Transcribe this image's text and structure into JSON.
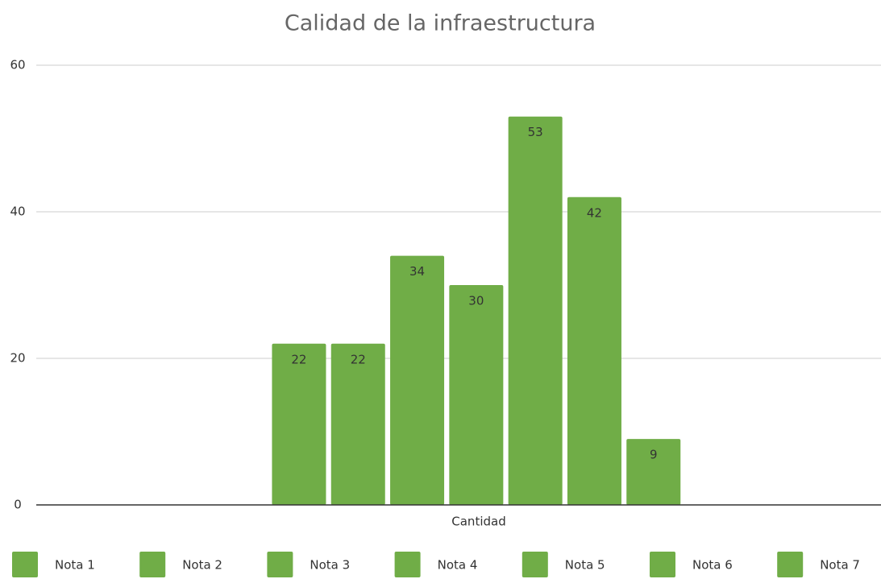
{
  "chart_data": {
    "type": "bar",
    "title": "Calidad de la infraestructura",
    "categories": [
      "Cantidad"
    ],
    "series": [
      {
        "name": "Nota 1",
        "color": "#70ad47",
        "values": [
          22
        ]
      },
      {
        "name": "Nota 2",
        "color": "#70ad47",
        "values": [
          22
        ]
      },
      {
        "name": "Nota 3",
        "color": "#70ad47",
        "values": [
          34
        ]
      },
      {
        "name": "Nota 4",
        "color": "#70ad47",
        "values": [
          30
        ]
      },
      {
        "name": "Nota 5",
        "color": "#70ad47",
        "values": [
          53
        ]
      },
      {
        "name": "Nota 6",
        "color": "#70ad47",
        "values": [
          42
        ]
      },
      {
        "name": "Nota 7",
        "color": "#70ad47",
        "values": [
          9
        ]
      }
    ],
    "ylim": [
      0,
      60
    ],
    "yticks": [
      0,
      20,
      40,
      60
    ],
    "grid": true,
    "legend": "bottom"
  }
}
